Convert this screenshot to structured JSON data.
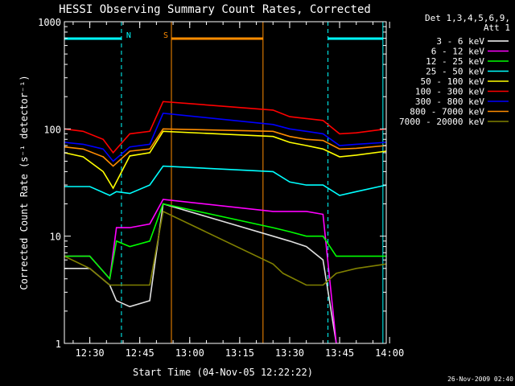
{
  "chart_data": {
    "type": "line",
    "title": "HESSI Observing Summary Count Rates, Corrected",
    "xlabel": "Start Time (04-Nov-05 12:22:22)",
    "ylabel": "Corrected Count Rate (s⁻¹ detector⁻¹)",
    "y_scale": "log",
    "ylim": [
      1,
      1000
    ],
    "xlim": [
      "12:22:22",
      "13:59:00"
    ],
    "x_ticks": [
      "12:30",
      "12:45",
      "13:00",
      "13:15",
      "13:30",
      "13:45",
      "14:00"
    ],
    "y_ticks": [
      "1",
      "10",
      "100",
      "1000"
    ],
    "grid": false,
    "legend_header": [
      "Det 1,3,4,5,6,9,",
      "Att 1"
    ],
    "legend_position": "right",
    "footer_date": "26-Nov-2009 02:40",
    "markers": [
      {
        "label": "N",
        "color": "#00ffff",
        "line_times": [
          "12:22:22",
          "12:39:30",
          "13:41:30",
          "13:58:00"
        ],
        "bars": [
          [
            "12:22:22",
            "12:39:30"
          ],
          [
            "13:41:30",
            "13:58:00"
          ]
        ]
      },
      {
        "label": "S",
        "color": "#ff8c00",
        "line_times": [
          "12:54:30",
          "13:22:00"
        ],
        "bars": [
          [
            "12:54:30",
            "13:22:00"
          ]
        ]
      }
    ],
    "series": [
      {
        "name": "3 - 6 keV",
        "color": "#000000",
        "x": [
          "12:22:22",
          "12:30",
          "12:36",
          "12:38",
          "12:42",
          "12:48",
          "12:52",
          "13:25",
          "13:30",
          "13:35",
          "13:40",
          "13:44"
        ],
        "y": [
          5.0,
          5.0,
          3.5,
          2.5,
          2.2,
          2.5,
          20,
          10,
          9,
          8,
          6,
          1
        ]
      },
      {
        "name": "6 - 12 keV",
        "color": "#ff00ff",
        "x": [
          "12:22:22",
          "12:30",
          "12:36",
          "12:38",
          "12:42",
          "12:48",
          "12:52",
          "13:25",
          "13:28",
          "13:35",
          "13:40",
          "13:44"
        ],
        "y": [
          6.5,
          6.5,
          4.0,
          12,
          12,
          13,
          22,
          17,
          17,
          17,
          16,
          1
        ]
      },
      {
        "name": "12 - 25 keV",
        "color": "#00ff00",
        "x": [
          "12:22:22",
          "12:30",
          "12:36",
          "12:38",
          "12:42",
          "12:48",
          "12:52",
          "13:25",
          "13:30",
          "13:35",
          "13:40",
          "13:44",
          "13:50",
          "13:59"
        ],
        "y": [
          6.5,
          6.5,
          4.0,
          9,
          8,
          9,
          20,
          12,
          11,
          10,
          10,
          6.5,
          6.5,
          6.5
        ]
      },
      {
        "name": "25 - 50 keV",
        "color": "#00ffff",
        "x": [
          "12:22:22",
          "12:30",
          "12:36",
          "12:38",
          "12:42",
          "12:48",
          "12:52",
          "13:25",
          "13:30",
          "13:35",
          "13:40",
          "13:45",
          "13:50",
          "13:59"
        ],
        "y": [
          29,
          29,
          24,
          26,
          25,
          30,
          45,
          40,
          32,
          30,
          30,
          24,
          26,
          30
        ]
      },
      {
        "name": "50 - 100 keV",
        "color": "#ffff00",
        "x": [
          "12:22:22",
          "12:28",
          "12:34",
          "12:37",
          "12:42",
          "12:48",
          "12:52",
          "13:25",
          "13:30",
          "13:35",
          "13:40",
          "13:45",
          "13:50",
          "13:59"
        ],
        "y": [
          60,
          55,
          40,
          28,
          56,
          60,
          95,
          85,
          75,
          70,
          65,
          55,
          57,
          62
        ]
      },
      {
        "name": "100 - 300 keV",
        "color": "#ff0000",
        "x": [
          "12:22:22",
          "12:28",
          "12:34",
          "12:37",
          "12:42",
          "12:48",
          "12:52",
          "13:25",
          "13:30",
          "13:35",
          "13:40",
          "13:45",
          "13:50",
          "13:59"
        ],
        "y": [
          100,
          95,
          80,
          60,
          90,
          95,
          180,
          150,
          130,
          125,
          120,
          90,
          92,
          100
        ]
      },
      {
        "name": "300 - 800 keV",
        "color": "#0000ff",
        "x": [
          "12:22:22",
          "12:28",
          "12:34",
          "12:37",
          "12:42",
          "12:48",
          "12:52",
          "13:25",
          "13:30",
          "13:35",
          "13:40",
          "13:45",
          "13:50",
          "13:59"
        ],
        "y": [
          75,
          72,
          65,
          50,
          68,
          72,
          140,
          110,
          100,
          95,
          90,
          70,
          72,
          75
        ]
      },
      {
        "name": "800 - 7000 keV",
        "color": "#ff8c00",
        "x": [
          "12:22:22",
          "12:28",
          "12:34",
          "12:37",
          "12:42",
          "12:48",
          "12:52",
          "13:25",
          "13:30",
          "13:35",
          "13:40",
          "13:45",
          "13:50",
          "13:59"
        ],
        "y": [
          68,
          65,
          55,
          45,
          62,
          65,
          100,
          95,
          85,
          80,
          78,
          65,
          66,
          70
        ]
      },
      {
        "name": "7000 - 20000 keV",
        "color": "#808000",
        "x": [
          "12:22:22",
          "12:30",
          "12:36",
          "12:38",
          "12:42",
          "12:48",
          "12:52",
          "13:25",
          "13:28",
          "13:35",
          "13:40",
          "13:44",
          "13:50",
          "13:59"
        ],
        "y": [
          6.5,
          5.0,
          3.5,
          3.5,
          3.5,
          3.5,
          17,
          5.5,
          4.5,
          3.5,
          3.5,
          4.5,
          5.0,
          5.5
        ]
      }
    ]
  }
}
